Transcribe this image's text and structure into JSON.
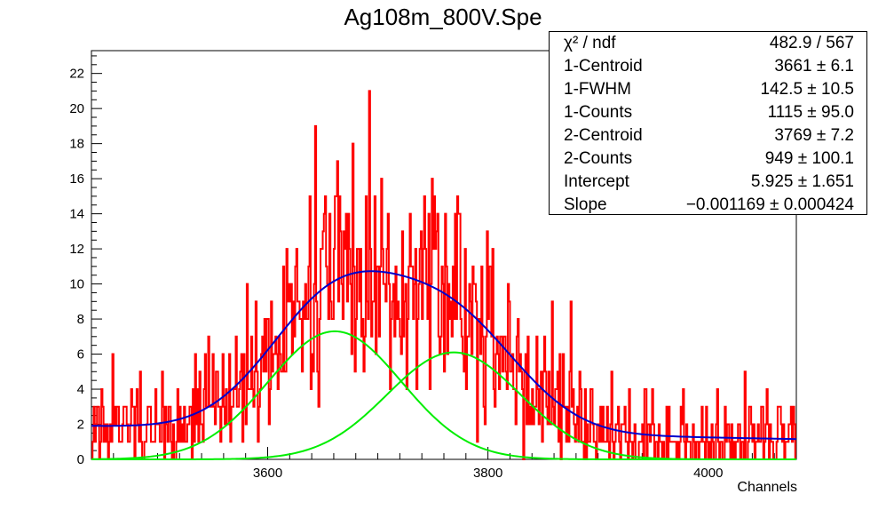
{
  "chart_data": {
    "type": "line",
    "title": "Ag108m_800V.Spe",
    "xlabel": "Channels",
    "ylabel": "",
    "xlim": [
      3440,
      4080
    ],
    "ylim": [
      0,
      23.3
    ],
    "x_ticks": [
      3600,
      3800,
      4000
    ],
    "y_ticks": [
      0,
      2,
      4,
      6,
      8,
      10,
      12,
      14,
      16,
      18,
      20,
      22
    ],
    "colors": {
      "histogram": "#ff0000",
      "total_fit": "#0000cc",
      "components": "#00ee00"
    },
    "fit_params": {
      "centroid1": 3661,
      "amp1": 7.3,
      "sigma1": 60.5,
      "centroid2": 3769,
      "amp2": 6.1,
      "sigma2": 60.5,
      "intercept": 5.925,
      "slope": -0.001169
    },
    "histogram_seed": 108,
    "series": [
      {
        "name": "data histogram",
        "style": "step"
      },
      {
        "name": "total fit",
        "style": "line"
      },
      {
        "name": "peak 1",
        "style": "line"
      },
      {
        "name": "peak 2",
        "style": "line"
      }
    ]
  },
  "stats": {
    "rows": [
      {
        "label": "χ² / ndf",
        "value": "482.9 / 567"
      },
      {
        "label": "1-Centroid",
        "value": "3661 ± 6.1"
      },
      {
        "label": "1-FWHM",
        "value": "142.5 ± 10.5"
      },
      {
        "label": "1-Counts",
        "value": "1115 ± 95.0"
      },
      {
        "label": "2-Centroid",
        "value": "3769 ± 7.2"
      },
      {
        "label": "2-Counts",
        "value": "949 ± 100.1"
      },
      {
        "label": "Intercept",
        "value": "5.925 ± 1.651"
      },
      {
        "label": "Slope",
        "value": "−0.001169 ± 0.000424"
      }
    ]
  }
}
